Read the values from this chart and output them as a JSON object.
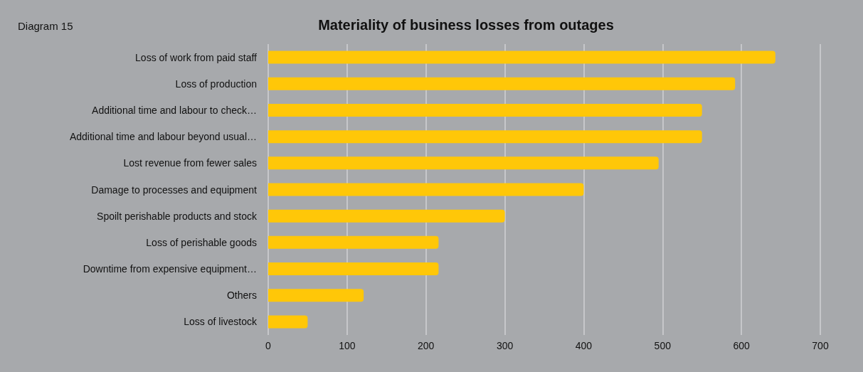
{
  "chart_data": {
    "type": "bar",
    "orientation": "horizontal",
    "title": "Materiality of business losses from outages",
    "annotations": [
      "Diagram 15"
    ],
    "categories": [
      "Loss of work from paid staff",
      "Loss of production",
      "Additional time and labour to check…",
      "Additional time and labour beyond usual…",
      "Lost revenue from fewer sales",
      "Damage to processes and equipment",
      "Spoilt perishable products and stock",
      "Loss of perishable goods",
      "Downtime from expensive equipment…",
      "Others",
      "Loss of livestock"
    ],
    "values": [
      643,
      592,
      550,
      550,
      495,
      400,
      300,
      216,
      216,
      121,
      50
    ],
    "color": "#ffc708",
    "xlim": [
      0,
      700
    ],
    "xticks": [
      0,
      100,
      200,
      300,
      400,
      500,
      600,
      700
    ],
    "grid": "x"
  }
}
